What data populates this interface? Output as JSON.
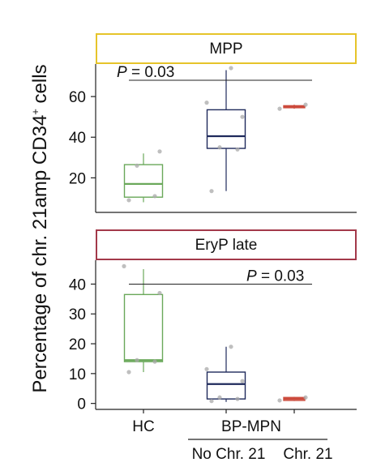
{
  "y_axis_label": {
    "pre": "Percentage of chr. 21amp CD34",
    "sup": "+",
    "post": " cells"
  },
  "x_groups": {
    "group_label": "BP-MPN"
  },
  "colors": {
    "HC": "#6aa85a",
    "No Chr. 21": "#1f2a5c",
    "Chr. 21": "#cc4a3c",
    "mpp_strip": "#e6c42a",
    "eryp_strip": "#a3394a",
    "point": "#aaaaaa"
  },
  "chart_data": [
    {
      "type": "box",
      "title": "MPP",
      "categories": [
        "HC",
        "No Chr. 21",
        "Chr. 21"
      ],
      "ylim": [
        3,
        76
      ],
      "yticks": [
        20,
        40,
        60
      ],
      "boxes": [
        {
          "category": "HC",
          "q1": 10.5,
          "median": 17,
          "q3": 26.5,
          "whisker_low": 8,
          "whisker_high": 32
        },
        {
          "category": "No Chr. 21",
          "q1": 34.5,
          "median": 40.5,
          "q3": 53.5,
          "whisker_low": 13.5,
          "whisker_high": 73
        },
        {
          "category": "Chr. 21",
          "q1": 54.5,
          "median": 55,
          "q3": 55.5,
          "whisker_low": 54,
          "whisker_high": 56
        }
      ],
      "points": [
        {
          "category": "HC",
          "values": [
            9,
            11,
            26,
            33
          ]
        },
        {
          "category": "No Chr. 21",
          "values": [
            13.5,
            34,
            35,
            50,
            57,
            74
          ]
        },
        {
          "category": "Chr. 21",
          "values": [
            54,
            56
          ]
        }
      ],
      "annotation": {
        "label": "P",
        "value_text": " = 0.03",
        "from": "HC",
        "to": "Chr. 21",
        "y": 68
      }
    },
    {
      "type": "box",
      "title": "EryP late",
      "categories": [
        "HC",
        "No Chr. 21",
        "Chr. 21"
      ],
      "ylim": [
        -2,
        48
      ],
      "yticks": [
        0,
        10,
        20,
        30,
        40
      ],
      "boxes": [
        {
          "category": "HC",
          "q1": 14,
          "median": 14.5,
          "q3": 36.5,
          "whisker_low": 10.5,
          "whisker_high": 45
        },
        {
          "category": "No Chr. 21",
          "q1": 1.5,
          "median": 6.5,
          "q3": 10.5,
          "whisker_low": 0.5,
          "whisker_high": 19
        },
        {
          "category": "Chr. 21",
          "q1": 1,
          "median": 1.5,
          "q3": 2,
          "whisker_low": 0.8,
          "whisker_high": 2.2
        }
      ],
      "points": [
        {
          "category": "HC",
          "values": [
            10.5,
            14,
            14.5,
            37,
            46
          ]
        },
        {
          "category": "No Chr. 21",
          "values": [
            0.8,
            1.5,
            2,
            7.5,
            11.5,
            19
          ]
        },
        {
          "category": "Chr. 21",
          "values": [
            1,
            2
          ]
        }
      ],
      "annotation": {
        "label": "P",
        "value_text": " = 0.03",
        "from": "HC",
        "to": "Chr. 21",
        "y": 40
      }
    }
  ]
}
